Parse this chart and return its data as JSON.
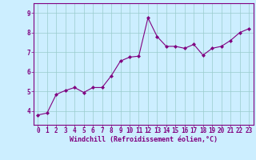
{
  "x": [
    0,
    1,
    2,
    3,
    4,
    5,
    6,
    7,
    8,
    9,
    10,
    11,
    12,
    13,
    14,
    15,
    16,
    17,
    18,
    19,
    20,
    21,
    22,
    23
  ],
  "y": [
    3.8,
    3.9,
    4.85,
    5.05,
    5.2,
    4.95,
    5.2,
    5.2,
    5.8,
    6.55,
    6.75,
    6.8,
    8.75,
    7.8,
    7.3,
    7.3,
    7.2,
    7.4,
    6.85,
    7.2,
    7.3,
    7.6,
    8.0,
    8.2
  ],
  "line_color": "#800080",
  "marker": "D",
  "marker_size": 2.0,
  "bg_color": "#cceeff",
  "grid_color": "#99cccc",
  "xlabel": "Windchill (Refroidissement éolien,°C)",
  "xlim": [
    -0.5,
    23.5
  ],
  "ylim": [
    3.3,
    9.5
  ],
  "yticks": [
    4,
    5,
    6,
    7,
    8,
    9
  ],
  "xticks": [
    0,
    1,
    2,
    3,
    4,
    5,
    6,
    7,
    8,
    9,
    10,
    11,
    12,
    13,
    14,
    15,
    16,
    17,
    18,
    19,
    20,
    21,
    22,
    23
  ],
  "xlabel_color": "#800080",
  "tick_color": "#800080",
  "spine_color": "#800080",
  "label_fontsize": 6.0,
  "tick_fontsize": 5.5
}
